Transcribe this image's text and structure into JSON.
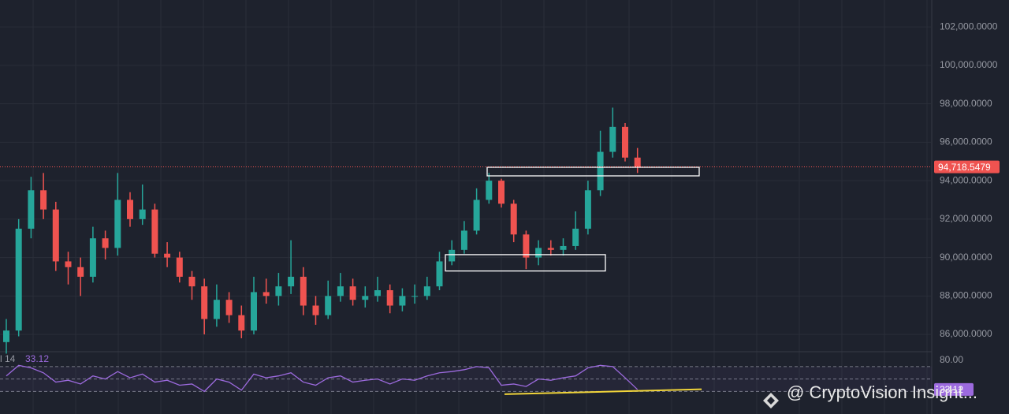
{
  "chart_data": {
    "type": "candlestick",
    "open": [
      85600,
      86200,
      91500,
      93500,
      92500,
      89800,
      89500,
      89000,
      91000,
      90500,
      93000,
      92000,
      92500,
      90200,
      90000,
      89000,
      88500,
      86800,
      87800,
      87000,
      86200,
      88200,
      88000,
      88500,
      89000,
      87500,
      87000,
      88000,
      88500,
      87800,
      88000,
      88300,
      87500,
      88000,
      88000,
      88500,
      89800,
      90400,
      91400,
      93000,
      94000,
      92800,
      91200,
      90000,
      90500,
      90400,
      90600,
      91500,
      93500,
      95500,
      96800,
      95200
    ],
    "high": [
      86800,
      92000,
      94200,
      94400,
      92900,
      90300,
      90000,
      91600,
      91400,
      94400,
      93400,
      93800,
      92800,
      90800,
      90300,
      89300,
      88900,
      88600,
      88200,
      87500,
      89000,
      88900,
      89200,
      90900,
      89500,
      88000,
      88800,
      89200,
      88900,
      88500,
      89000,
      88600,
      88400,
      88600,
      89000,
      90300,
      90900,
      91900,
      93600,
      94400,
      94100,
      93000,
      91400,
      90900,
      90900,
      91000,
      92400,
      94000,
      96600,
      97800,
      97000,
      95700
    ],
    "low": [
      85000,
      85900,
      91000,
      92000,
      89300,
      88600,
      88000,
      88700,
      89900,
      90100,
      91600,
      91700,
      90000,
      89500,
      88700,
      87800,
      86000,
      86400,
      86600,
      85800,
      86000,
      87600,
      87500,
      88100,
      87000,
      86500,
      86800,
      87700,
      87500,
      87400,
      87700,
      87100,
      87200,
      87600,
      87800,
      88300,
      89600,
      90200,
      91200,
      92800,
      92600,
      90800,
      89400,
      89600,
      90100,
      90100,
      90400,
      91200,
      93200,
      95200,
      95000,
      94400
    ],
    "close": [
      86200,
      91500,
      93500,
      92500,
      89800,
      89500,
      89000,
      91000,
      90500,
      93000,
      92000,
      92500,
      90200,
      90000,
      89000,
      88500,
      86800,
      87800,
      87000,
      86200,
      88200,
      88000,
      88500,
      89000,
      87500,
      87000,
      88000,
      88500,
      87800,
      88000,
      88300,
      87500,
      88000,
      88000,
      88500,
      89800,
      90400,
      91400,
      93000,
      94000,
      92800,
      91200,
      90000,
      90500,
      90400,
      90600,
      91500,
      93500,
      95500,
      96800,
      95200,
      94718.5479
    ],
    "up_color": "#26a69a",
    "down_color": "#ef5350",
    "ylim": [
      85100,
      103400
    ],
    "yticks": [
      {
        "value": 86000,
        "label": "86,000.0000"
      },
      {
        "value": 88000,
        "label": "88,000.0000"
      },
      {
        "value": 90000,
        "label": "90,000.0000"
      },
      {
        "value": 92000,
        "label": "92,000.0000"
      },
      {
        "value": 94000,
        "label": "94,000.0000"
      },
      {
        "value": 96000,
        "label": "96,000.0000"
      },
      {
        "value": 98000,
        "label": "98,000.0000"
      },
      {
        "value": 100000,
        "label": "100,000.0000"
      },
      {
        "value": 102000,
        "label": "102,000.0000"
      }
    ],
    "grid": true,
    "last_price": {
      "value": 94718.5479,
      "label": "94,718.5479"
    },
    "zones": [
      {
        "top": 94700,
        "bottom": 94250
      },
      {
        "top": 90150,
        "bottom": 89300
      }
    ],
    "rsi": {
      "label": "l 14",
      "value_label": "33.12",
      "color": "#9c6ade",
      "values": [
        55,
        72,
        68,
        60,
        45,
        48,
        42,
        55,
        50,
        62,
        52,
        58,
        45,
        48,
        40,
        42,
        30,
        50,
        45,
        32,
        58,
        52,
        55,
        60,
        45,
        40,
        52,
        55,
        45,
        48,
        50,
        42,
        50,
        48,
        55,
        60,
        62,
        65,
        70,
        68,
        40,
        42,
        38,
        50,
        48,
        52,
        55,
        68,
        72,
        70,
        52,
        33.12
      ],
      "ylim": [
        0,
        94
      ],
      "yticks": [
        {
          "value": 80,
          "label": "80.00"
        }
      ],
      "levels": [
        70,
        50,
        30
      ],
      "trendline": [
        25.5,
        33.5
      ],
      "trendline_color": "#f0d43a"
    },
    "watermark": "@ CryptoVision Insight..."
  }
}
